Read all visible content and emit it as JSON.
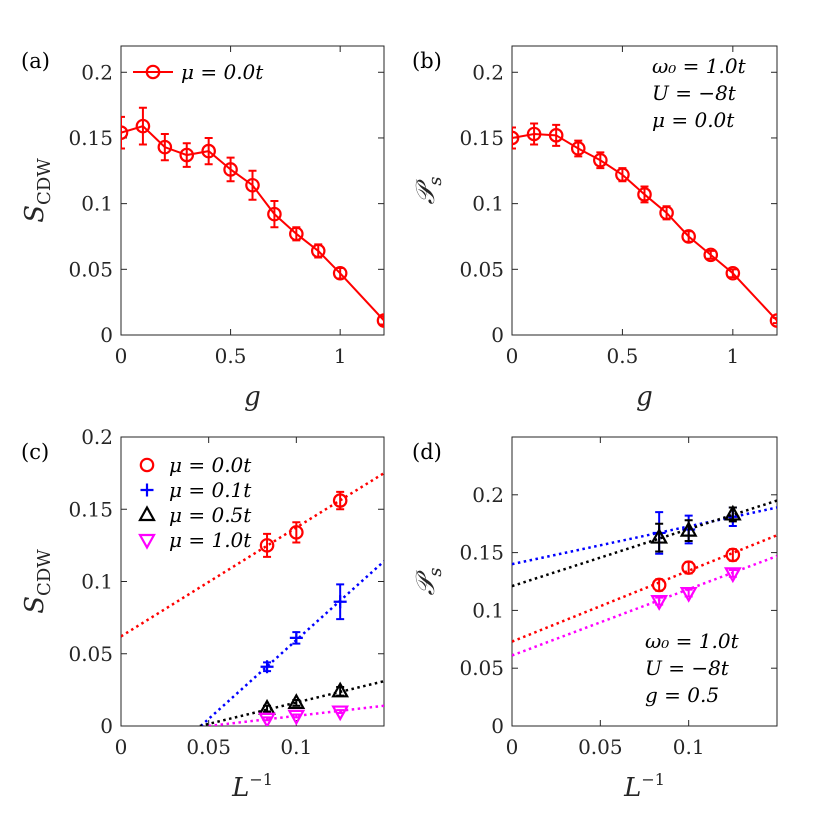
{
  "colors": {
    "red": "#ff0000",
    "blue": "#0000ff",
    "black": "#000000",
    "magenta": "#ff00ff",
    "axis": "#262626"
  },
  "chart_data": [
    {
      "panel": "(a)",
      "type": "line",
      "xlabel": "g",
      "ylabel": "S_CDW",
      "ylabel_main": "S",
      "ylabel_sub": "CDW",
      "xlim": [
        0,
        1.2
      ],
      "ylim": [
        0,
        0.22
      ],
      "xticks": [
        0,
        0.5,
        1
      ],
      "xtick_labels": [
        "0",
        "0.5",
        "1"
      ],
      "yticks": [
        0,
        0.05,
        0.1,
        0.15,
        0.2
      ],
      "ytick_labels": [
        "0",
        "0.05",
        "0.1",
        "0.15",
        "0.2"
      ],
      "legend_position": "top-left",
      "annotation": [],
      "series": [
        {
          "name": "μ = 0.0t",
          "color": "red",
          "marker": "circle",
          "line": "solid",
          "x": [
            0,
            0.1,
            0.2,
            0.3,
            0.4,
            0.5,
            0.6,
            0.7,
            0.8,
            0.9,
            1.0,
            1.2
          ],
          "y": [
            0.154,
            0.159,
            0.143,
            0.137,
            0.14,
            0.126,
            0.114,
            0.092,
            0.077,
            0.064,
            0.047,
            0.011
          ],
          "err": [
            0.012,
            0.014,
            0.01,
            0.009,
            0.01,
            0.009,
            0.011,
            0.01,
            0.005,
            0.005,
            0.004,
            0.003
          ]
        }
      ]
    },
    {
      "panel": "(b)",
      "type": "line",
      "xlabel": "g",
      "ylabel": "𝒫_s",
      "ylabel_main": "𝒫",
      "ylabel_sub": "s",
      "xlim": [
        0,
        1.2
      ],
      "ylim": [
        0,
        0.22
      ],
      "xticks": [
        0,
        0.5,
        1
      ],
      "xtick_labels": [
        "0",
        "0.5",
        "1"
      ],
      "yticks": [
        0,
        0.05,
        0.1,
        0.15,
        0.2
      ],
      "ytick_labels": [
        "0",
        "0.05",
        "0.1",
        "0.15",
        "0.2"
      ],
      "legend_position": "none",
      "annotation": [
        "ω₀ = 1.0t",
        "U = −8t",
        "μ = 0.0t"
      ],
      "series": [
        {
          "name": "",
          "color": "red",
          "marker": "circle",
          "line": "solid",
          "x": [
            0,
            0.1,
            0.2,
            0.3,
            0.4,
            0.5,
            0.6,
            0.7,
            0.8,
            0.9,
            1.0,
            1.2
          ],
          "y": [
            0.15,
            0.153,
            0.152,
            0.142,
            0.133,
            0.122,
            0.107,
            0.093,
            0.075,
            0.061,
            0.047,
            0.011
          ],
          "err": [
            0.008,
            0.008,
            0.008,
            0.006,
            0.006,
            0.005,
            0.006,
            0.005,
            0.004,
            0.003,
            0.003,
            0.002
          ]
        }
      ]
    },
    {
      "panel": "(c)",
      "type": "scatter",
      "xlabel": "L^-1",
      "xlabel_main": "L",
      "xlabel_sup": "−1",
      "ylabel": "S_CDW",
      "ylabel_main": "S",
      "ylabel_sub": "CDW",
      "xlim": [
        0,
        0.15
      ],
      "ylim": [
        0,
        0.2
      ],
      "xticks": [
        0,
        0.05,
        0.1
      ],
      "xtick_labels": [
        "0",
        "0.05",
        "0.1"
      ],
      "yticks": [
        0,
        0.05,
        0.1,
        0.15,
        0.2
      ],
      "ytick_labels": [
        "0",
        "0.05",
        "0.1",
        "0.15",
        "0.2"
      ],
      "legend_position": "top-left",
      "annotation": [],
      "series": [
        {
          "name": "μ = 0.0t",
          "color": "red",
          "marker": "circle",
          "x": [
            0.0833,
            0.1,
            0.125
          ],
          "y": [
            0.125,
            0.134,
            0.156
          ],
          "err": [
            0.008,
            0.007,
            0.006
          ],
          "fit": {
            "x": [
              0,
              0.15
            ],
            "y": [
              0.062,
              0.175
            ]
          }
        },
        {
          "name": "μ = 0.1t",
          "color": "blue",
          "marker": "plus",
          "x": [
            0.0833,
            0.1,
            0.125
          ],
          "y": [
            0.041,
            0.061,
            0.086
          ],
          "err": [
            0.003,
            0.004,
            0.012
          ],
          "fit": {
            "x": [
              0.0455,
              0.15
            ],
            "y": [
              0,
              0.114
            ]
          }
        },
        {
          "name": "μ = 0.5t",
          "color": "black",
          "marker": "triangle-up",
          "x": [
            0.0833,
            0.1,
            0.125
          ],
          "y": [
            0.012,
            0.016,
            0.024
          ],
          "err": [
            0.002,
            0.002,
            0.003
          ],
          "fit": {
            "x": [
              0.045,
              0.15
            ],
            "y": [
              0,
              0.031
            ]
          }
        },
        {
          "name": "μ = 1.0t",
          "color": "magenta",
          "marker": "triangle-down",
          "x": [
            0.0833,
            0.1,
            0.125
          ],
          "y": [
            0.005,
            0.007,
            0.01
          ],
          "err": [
            0.001,
            0.001,
            0.001
          ],
          "fit": {
            "x": [
              0.05,
              0.15
            ],
            "y": [
              0,
              0.014
            ]
          }
        }
      ]
    },
    {
      "panel": "(d)",
      "type": "scatter",
      "xlabel": "L^-1",
      "xlabel_main": "L",
      "xlabel_sup": "−1",
      "ylabel": "𝒫_s",
      "ylabel_main": "𝒫",
      "ylabel_sub": "s",
      "xlim": [
        0,
        0.15
      ],
      "ylim": [
        0,
        0.25
      ],
      "xticks": [
        0,
        0.05,
        0.1
      ],
      "xtick_labels": [
        "0",
        "0.05",
        "0.1"
      ],
      "yticks": [
        0,
        0.05,
        0.1,
        0.15,
        0.2
      ],
      "ytick_labels": [
        "0",
        "0.05",
        "0.1",
        "0.15",
        "0.2"
      ],
      "legend_position": "none",
      "annotation": [
        "ω₀ = 1.0t",
        "U = −8t",
        "g = 0.5"
      ],
      "series": [
        {
          "name": "",
          "color": "red",
          "marker": "circle",
          "x": [
            0.0833,
            0.1,
            0.125
          ],
          "y": [
            0.122,
            0.137,
            0.148
          ],
          "err": [
            0.005,
            0.005,
            0.005
          ],
          "fit": {
            "x": [
              0,
              0.15
            ],
            "y": [
              0.073,
              0.165
            ]
          }
        },
        {
          "name": "",
          "color": "blue",
          "marker": "plus",
          "x": [
            0.0833,
            0.1,
            0.125
          ],
          "y": [
            0.167,
            0.17,
            0.181
          ],
          "err": [
            0.018,
            0.012,
            0.008
          ],
          "fit": {
            "x": [
              0,
              0.15
            ],
            "y": [
              0.14,
              0.189
            ]
          }
        },
        {
          "name": "",
          "color": "black",
          "marker": "triangle-up",
          "x": [
            0.0833,
            0.1,
            0.125
          ],
          "y": [
            0.163,
            0.169,
            0.183
          ],
          "err": [
            0.012,
            0.009,
            0.006
          ],
          "fit": {
            "x": [
              0,
              0.15
            ],
            "y": [
              0.121,
              0.195
            ]
          }
        },
        {
          "name": "",
          "color": "magenta",
          "marker": "triangle-down",
          "x": [
            0.0833,
            0.1,
            0.125
          ],
          "y": [
            0.108,
            0.115,
            0.132
          ],
          "err": [
            0.003,
            0.003,
            0.003
          ],
          "fit": {
            "x": [
              0,
              0.15
            ],
            "y": [
              0.061,
              0.147
            ]
          }
        }
      ]
    }
  ]
}
